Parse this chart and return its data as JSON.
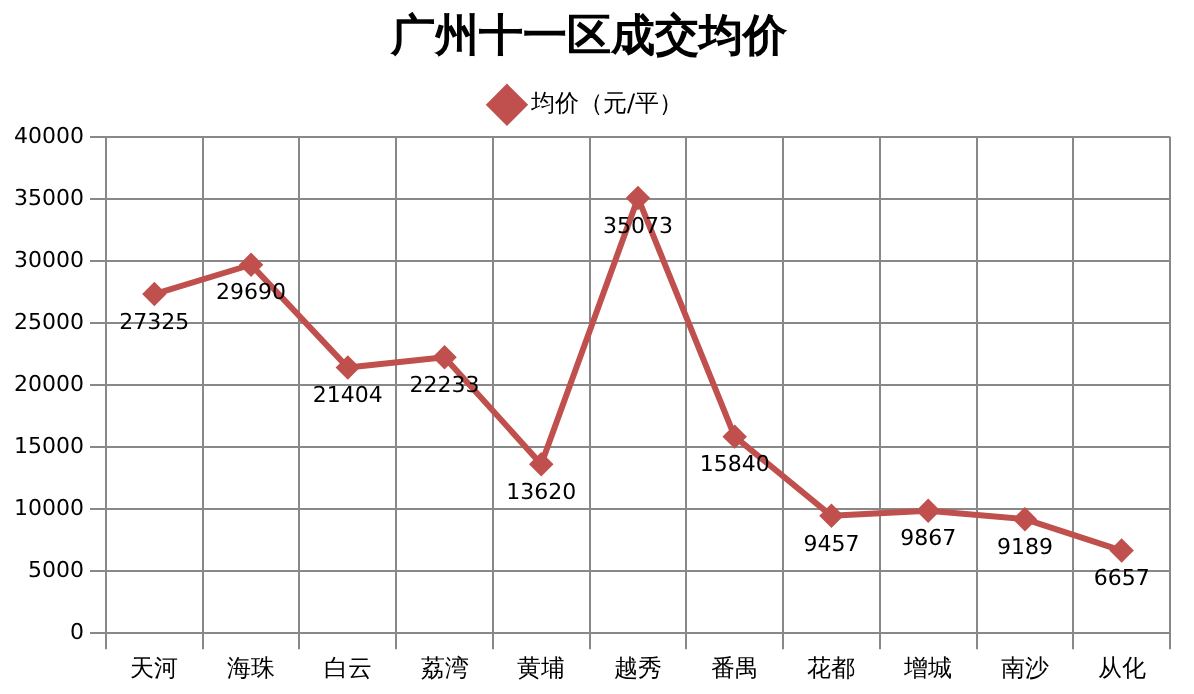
{
  "chart_data": {
    "type": "line",
    "title": "广州十一区成交均价",
    "categories": [
      "天河",
      "海珠",
      "白云",
      "荔湾",
      "黄埔",
      "越秀",
      "番禺",
      "花都",
      "增城",
      "南沙",
      "从化"
    ],
    "series": [
      {
        "name": "均价（元/平）",
        "color": "#c0504d",
        "values": [
          27325,
          29690,
          21404,
          22233,
          13620,
          35073,
          15840,
          9457,
          9867,
          9189,
          6657
        ]
      }
    ],
    "ylim": [
      0,
      40000
    ],
    "yticks": [
      0,
      5000,
      10000,
      15000,
      20000,
      25000,
      30000,
      35000,
      40000
    ],
    "grid": true,
    "legend": "top",
    "marker": "diamond",
    "line_style": "solid",
    "data_labels": true
  }
}
